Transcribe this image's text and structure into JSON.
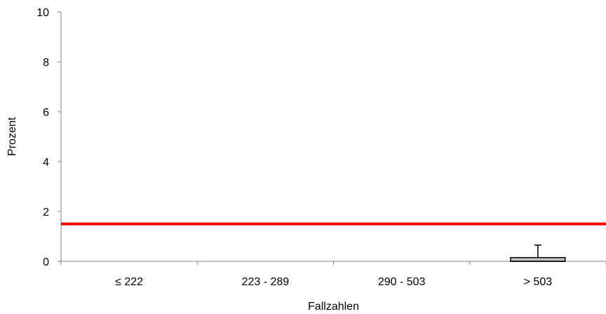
{
  "chart_data": {
    "type": "boxplot",
    "title": "",
    "xlabel": "Fallzahlen",
    "ylabel": "Prozent",
    "ylim": [
      0,
      10
    ],
    "yticks": [
      "0",
      "2",
      "4",
      "6",
      "8",
      "10"
    ],
    "categories": [
      "≤ 222",
      "223 - 289",
      "290 - 503",
      "> 503"
    ],
    "boxes": [
      null,
      null,
      null,
      {
        "q1": 0.0,
        "median": 0.0,
        "q3": 0.15,
        "whisker_low": 0.0,
        "whisker_high": 0.65
      }
    ],
    "reference_line": {
      "value": 1.5,
      "color": "#ff0000"
    },
    "grid": false,
    "box_fill": "#c0c0c0",
    "axis_color": "#808080"
  }
}
